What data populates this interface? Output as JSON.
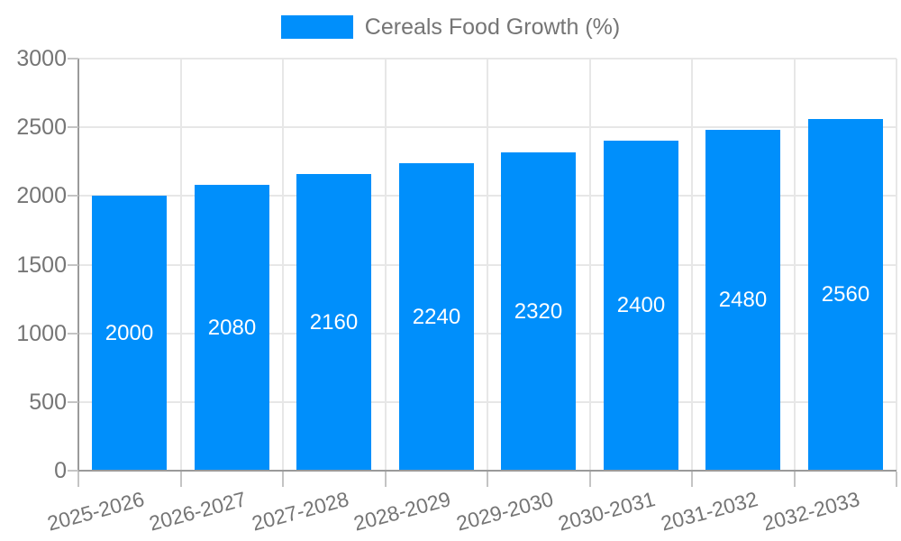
{
  "chart_data": {
    "type": "bar",
    "title": "",
    "xlabel": "",
    "ylabel": "",
    "legend": {
      "label": "Cereals Food Growth (%)",
      "position": "top"
    },
    "categories": [
      "2025-2026",
      "2026-2027",
      "2027-2028",
      "2028-2029",
      "2029-2030",
      "2030-2031",
      "2031-2032",
      "2032-2033"
    ],
    "series": [
      {
        "name": "Cereals Food Growth (%)",
        "values": [
          2000,
          2080,
          2160,
          2240,
          2320,
          2400,
          2480,
          2560
        ]
      }
    ],
    "ylim": [
      0,
      3000
    ],
    "yticks": [
      0,
      500,
      1000,
      1500,
      2000,
      2500,
      3000
    ],
    "grid": true,
    "x_label_rotation_deg": -15,
    "colors": {
      "bar": "#008FFB",
      "axis": "#9a9a9a",
      "gridline": "#e7e7e7",
      "tick": "#c4c4c4",
      "label_text": "#757575",
      "bar_label_text": "#ffffff",
      "background": "#ffffff"
    }
  }
}
